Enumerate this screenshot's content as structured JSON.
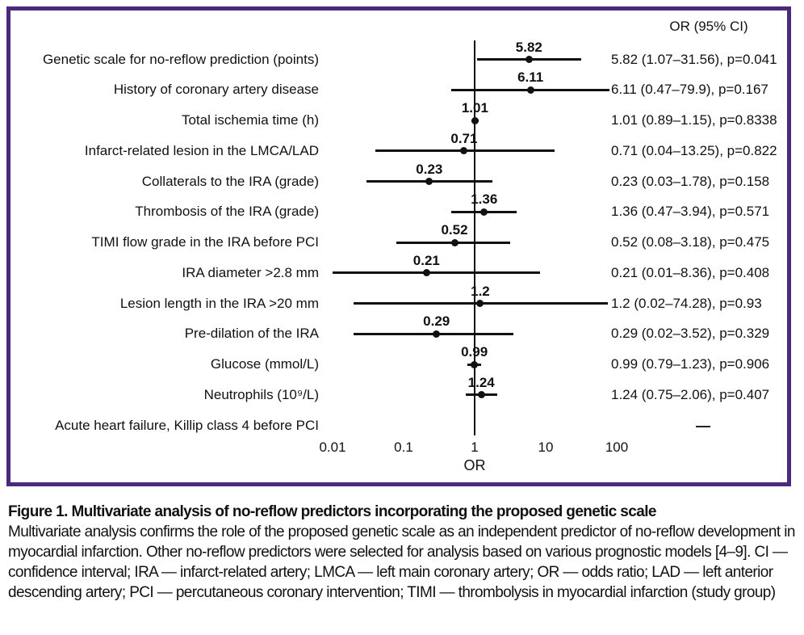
{
  "figure": {
    "panel_border_color": "#4a2a7d",
    "text_color": "#111111"
  },
  "chart_data": {
    "type": "scatter",
    "variant": "forest-plot",
    "title": "",
    "column_header": "OR (95% CI)",
    "xlabel": "OR",
    "xscale": "log",
    "xlim": [
      0.01,
      100
    ],
    "x_ticks": [
      0.01,
      0.1,
      1,
      10,
      100
    ],
    "x_tick_labels": [
      "0.01",
      "0.1",
      "1",
      "10",
      "100"
    ],
    "reference_line_x": 1,
    "grid": false,
    "legend": "none",
    "rows": [
      {
        "label": "Genetic scale for no-reflow prediction (points)",
        "or": 5.82,
        "ci_low": 1.07,
        "ci_high": 31.56,
        "p": "0.041",
        "or_label": "5.82",
        "display": "5.82 (1.07–31.56), p=0.041"
      },
      {
        "label": "History of coronary artery disease",
        "or": 6.11,
        "ci_low": 0.47,
        "ci_high": 79.9,
        "p": "0.167",
        "or_label": "6.11",
        "display": "6.11 (0.47–79.9), p=0.167"
      },
      {
        "label": "Total ischemia time (h)",
        "or": 1.01,
        "ci_low": 0.89,
        "ci_high": 1.15,
        "p": "0.8338",
        "or_label": "1.01",
        "display": "1.01 (0.89–1.15), p=0.8338"
      },
      {
        "label": "Infarct-related lesion in the LMCA/LAD",
        "or": 0.71,
        "ci_low": 0.04,
        "ci_high": 13.25,
        "p": "0.822",
        "or_label": "0.71",
        "display": "0.71 (0.04–13.25), p=0.822"
      },
      {
        "label": "Collaterals to the IRA (grade)",
        "or": 0.23,
        "ci_low": 0.03,
        "ci_high": 1.78,
        "p": "0.158",
        "or_label": "0.23",
        "display": "0.23 (0.03–1.78), p=0.158"
      },
      {
        "label": "Thrombosis of the IRA (grade)",
        "or": 1.36,
        "ci_low": 0.47,
        "ci_high": 3.94,
        "p": "0.571",
        "or_label": "1.36",
        "display": "1.36 (0.47–3.94), p=0.571"
      },
      {
        "label": "TIMI flow grade in the IRA before PCI",
        "or": 0.52,
        "ci_low": 0.08,
        "ci_high": 3.18,
        "p": "0.475",
        "or_label": "0.52",
        "display": "0.52 (0.08–3.18), p=0.475"
      },
      {
        "label": "IRA diameter >2.8 mm",
        "or": 0.21,
        "ci_low": 0.01,
        "ci_high": 8.36,
        "p": "0.408",
        "or_label": "0.21",
        "display": "0.21 (0.01–8.36), p=0.408"
      },
      {
        "label": "Lesion length in the IRA >20 mm",
        "or": 1.2,
        "ci_low": 0.02,
        "ci_high": 74.28,
        "p": "0.93",
        "or_label": "1.2",
        "display": "1.2 (0.02–74.28), p=0.93"
      },
      {
        "label": "Pre-dilation of the IRA",
        "or": 0.29,
        "ci_low": 0.02,
        "ci_high": 3.52,
        "p": "0.329",
        "or_label": "0.29",
        "display": "0.29 (0.02–3.52), p=0.329"
      },
      {
        "label": "Glucose (mmol/L)",
        "or": 0.99,
        "ci_low": 0.79,
        "ci_high": 1.23,
        "p": "0.906",
        "or_label": "0.99",
        "display": "0.99 (0.79–1.23), p=0.906"
      },
      {
        "label": "Neutrophils (10⁹/L)",
        "or": 1.24,
        "ci_low": 0.75,
        "ci_high": 2.06,
        "p": "0.407",
        "or_label": "1.24",
        "display": "1.24 (0.75–2.06), p=0.407"
      },
      {
        "label": "Acute heart failure, Killip class 4 before PCI",
        "or": null,
        "ci_low": null,
        "ci_high": null,
        "p": null,
        "or_label": "",
        "display": "—"
      }
    ]
  },
  "caption": {
    "title": "Figure 1. Multivariate analysis of no-reflow predictors incorporating the proposed genetic scale",
    "body": "Multivariate analysis confirms the role of the proposed genetic scale as an independent predictor of no-reflow development in myocardial infarction. Other no-reflow predictors were selected for analysis based on various prognostic models [4–9]. CI — confidence interval; IRA — infarct-related artery; LMCA — left main coronary artery; OR — odds ratio; LAD — left anterior descending artery; PCI — percutaneous coronary intervention; TIMI — thrombolysis in myocardial infarction (study group)"
  }
}
